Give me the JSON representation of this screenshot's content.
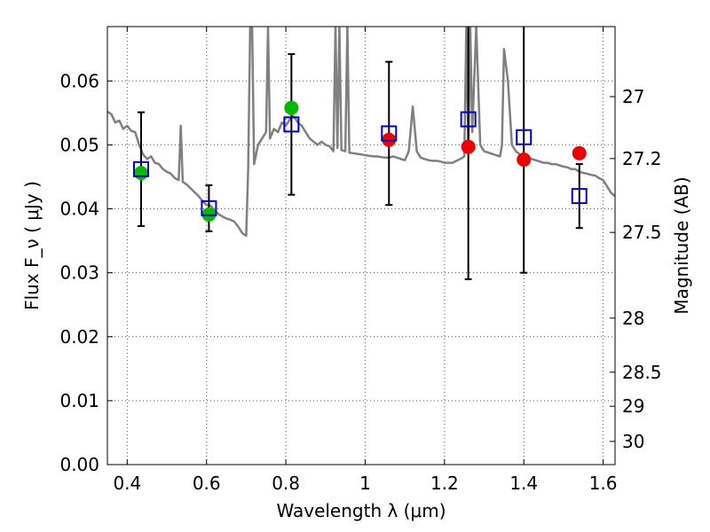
{
  "chart_data": {
    "type": "scatter",
    "xlabel": "Wavelength  λ (μm)",
    "ylabel_left": "Flux  F_ν  ( μJy )",
    "ylabel_right": "Magnitude (AB)",
    "xlim": [
      0.35,
      1.63
    ],
    "ylim": [
      0.0,
      0.0685
    ],
    "grid": true,
    "x_ticks": [
      0.4,
      0.6,
      0.8,
      1.0,
      1.2,
      1.4,
      1.6
    ],
    "x_tick_labels": [
      "0.4",
      "0.6",
      "0.8",
      "1",
      "1.2",
      "1.4",
      "1.6"
    ],
    "y_ticks": [
      0.0,
      0.01,
      0.02,
      0.03,
      0.04,
      0.05,
      0.06
    ],
    "y_tick_labels": [
      "0.00",
      "0.01",
      "0.02",
      "0.03",
      "0.04",
      "0.05",
      "0.06"
    ],
    "right_ticks": [
      {
        "mag": 27,
        "label": "27"
      },
      {
        "mag": 27.2,
        "label": "27.2"
      },
      {
        "mag": 27.5,
        "label": "27.5"
      },
      {
        "mag": 28,
        "label": "28"
      },
      {
        "mag": 28.5,
        "label": "28.5"
      },
      {
        "mag": 29,
        "label": "29"
      },
      {
        "mag": 30,
        "label": "30"
      }
    ],
    "model_points": [
      {
        "x": 0.435,
        "y": 0.0462,
        "err": 0.0089
      },
      {
        "x": 0.606,
        "y": 0.0401,
        "err": 0.0036
      },
      {
        "x": 0.814,
        "y": 0.0532,
        "err": 0.011
      },
      {
        "x": 1.06,
        "y": 0.0518,
        "err": 0.0112
      },
      {
        "x": 1.26,
        "y": 0.054,
        "err": 0.025
      },
      {
        "x": 1.4,
        "y": 0.0512,
        "err": 0.0212
      },
      {
        "x": 1.54,
        "y": 0.042,
        "err": 0.005
      }
    ],
    "obs_green": [
      {
        "x": 0.435,
        "y": 0.0456
      },
      {
        "x": 0.606,
        "y": 0.0391
      },
      {
        "x": 0.814,
        "y": 0.0558
      }
    ],
    "obs_red": [
      {
        "x": 1.06,
        "y": 0.0508
      },
      {
        "x": 1.26,
        "y": 0.0497
      },
      {
        "x": 1.4,
        "y": 0.0477
      },
      {
        "x": 1.54,
        "y": 0.0487
      }
    ],
    "spectrum": [
      [
        0.35,
        0.0552
      ],
      [
        0.36,
        0.0548
      ],
      [
        0.37,
        0.0535
      ],
      [
        0.38,
        0.0538
      ],
      [
        0.39,
        0.0525
      ],
      [
        0.4,
        0.053
      ],
      [
        0.41,
        0.0522
      ],
      [
        0.42,
        0.052
      ],
      [
        0.43,
        0.05
      ],
      [
        0.44,
        0.0485
      ],
      [
        0.45,
        0.0478
      ],
      [
        0.46,
        0.0482
      ],
      [
        0.47,
        0.0472
      ],
      [
        0.48,
        0.047
      ],
      [
        0.49,
        0.0462
      ],
      [
        0.5,
        0.0458
      ],
      [
        0.51,
        0.0455
      ],
      [
        0.52,
        0.0448
      ],
      [
        0.53,
        0.0445
      ],
      [
        0.535,
        0.053
      ],
      [
        0.54,
        0.0442
      ],
      [
        0.55,
        0.0438
      ],
      [
        0.56,
        0.0432
      ],
      [
        0.57,
        0.0426
      ],
      [
        0.58,
        0.042
      ],
      [
        0.59,
        0.0412
      ],
      [
        0.6,
        0.0406
      ],
      [
        0.61,
        0.0405
      ],
      [
        0.62,
        0.0398
      ],
      [
        0.63,
        0.0392
      ],
      [
        0.64,
        0.0388
      ],
      [
        0.65,
        0.0385
      ],
      [
        0.66,
        0.0383
      ],
      [
        0.67,
        0.038
      ],
      [
        0.68,
        0.0372
      ],
      [
        0.69,
        0.0362
      ],
      [
        0.7,
        0.0358
      ],
      [
        0.705,
        0.046
      ],
      [
        0.71,
        0.0685
      ],
      [
        0.715,
        0.0685
      ],
      [
        0.72,
        0.047
      ],
      [
        0.73,
        0.05
      ],
      [
        0.74,
        0.051
      ],
      [
        0.75,
        0.052
      ],
      [
        0.755,
        0.0685
      ],
      [
        0.76,
        0.051
      ],
      [
        0.77,
        0.0525
      ],
      [
        0.78,
        0.052
      ],
      [
        0.79,
        0.0535
      ],
      [
        0.8,
        0.053
      ],
      [
        0.81,
        0.054
      ],
      [
        0.82,
        0.0545
      ],
      [
        0.83,
        0.0535
      ],
      [
        0.84,
        0.053
      ],
      [
        0.85,
        0.052
      ],
      [
        0.86,
        0.051
      ],
      [
        0.87,
        0.0505
      ],
      [
        0.88,
        0.05
      ],
      [
        0.89,
        0.0505
      ],
      [
        0.9,
        0.05
      ],
      [
        0.91,
        0.0498
      ],
      [
        0.92,
        0.049
      ],
      [
        0.925,
        0.0685
      ],
      [
        0.93,
        0.0495
      ],
      [
        0.935,
        0.0685
      ],
      [
        0.94,
        0.0492
      ],
      [
        0.95,
        0.049
      ],
      [
        0.955,
        0.0685
      ],
      [
        0.96,
        0.0488
      ],
      [
        0.97,
        0.0487
      ],
      [
        0.98,
        0.0486
      ],
      [
        0.99,
        0.0485
      ],
      [
        1.0,
        0.0484
      ],
      [
        1.01,
        0.0483
      ],
      [
        1.02,
        0.0482
      ],
      [
        1.03,
        0.0482
      ],
      [
        1.04,
        0.0481
      ],
      [
        1.05,
        0.048
      ],
      [
        1.06,
        0.048
      ],
      [
        1.07,
        0.0482
      ],
      [
        1.08,
        0.048
      ],
      [
        1.09,
        0.0478
      ],
      [
        1.1,
        0.0476
      ],
      [
        1.11,
        0.049
      ],
      [
        1.12,
        0.056
      ],
      [
        1.13,
        0.049
      ],
      [
        1.14,
        0.048
      ],
      [
        1.15,
        0.0478
      ],
      [
        1.16,
        0.0476
      ],
      [
        1.17,
        0.0475
      ],
      [
        1.18,
        0.0475
      ],
      [
        1.19,
        0.0474
      ],
      [
        1.2,
        0.0472
      ],
      [
        1.21,
        0.0472
      ],
      [
        1.22,
        0.0472
      ],
      [
        1.23,
        0.0475
      ],
      [
        1.24,
        0.0478
      ],
      [
        1.25,
        0.0482
      ],
      [
        1.255,
        0.0685
      ],
      [
        1.26,
        0.049
      ],
      [
        1.265,
        0.0685
      ],
      [
        1.27,
        0.052
      ],
      [
        1.28,
        0.0685
      ],
      [
        1.29,
        0.05
      ],
      [
        1.3,
        0.049
      ],
      [
        1.31,
        0.0488
      ],
      [
        1.32,
        0.0486
      ],
      [
        1.33,
        0.0484
      ],
      [
        1.34,
        0.0482
      ],
      [
        1.345,
        0.05
      ],
      [
        1.35,
        0.065
      ],
      [
        1.36,
        0.06
      ],
      [
        1.37,
        0.05
      ],
      [
        1.38,
        0.049
      ],
      [
        1.39,
        0.0485
      ],
      [
        1.4,
        0.0482
      ],
      [
        1.41,
        0.048
      ],
      [
        1.42,
        0.0478
      ],
      [
        1.43,
        0.0476
      ],
      [
        1.44,
        0.0474
      ],
      [
        1.45,
        0.0472
      ],
      [
        1.46,
        0.0472
      ],
      [
        1.47,
        0.047
      ],
      [
        1.48,
        0.047
      ],
      [
        1.49,
        0.0468
      ],
      [
        1.5,
        0.0466
      ],
      [
        1.51,
        0.0465
      ],
      [
        1.52,
        0.0462
      ],
      [
        1.53,
        0.0462
      ],
      [
        1.54,
        0.0458
      ],
      [
        1.55,
        0.0456
      ],
      [
        1.56,
        0.0455
      ],
      [
        1.57,
        0.0453
      ],
      [
        1.58,
        0.0452
      ],
      [
        1.59,
        0.0448
      ],
      [
        1.6,
        0.0445
      ],
      [
        1.61,
        0.0435
      ],
      [
        1.62,
        0.0425
      ],
      [
        1.63,
        0.042
      ]
    ],
    "colors": {
      "spectrum": "#808080",
      "model_square": "#0000cc",
      "green_point": "#00bb00",
      "red_point": "#ee0000",
      "errorbar": "#000000",
      "grid": "#555555"
    }
  }
}
